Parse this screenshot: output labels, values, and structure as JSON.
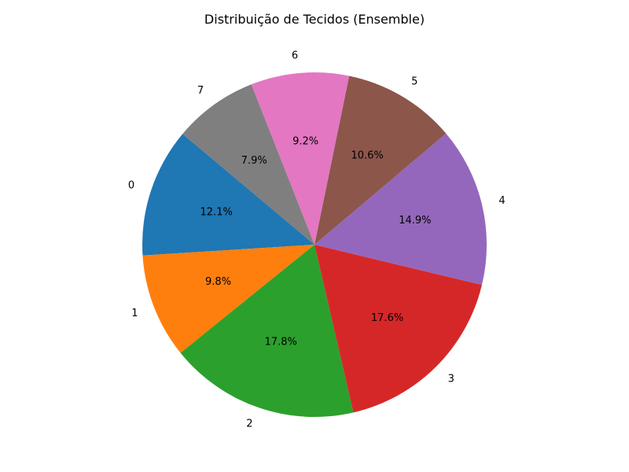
{
  "chart_data": {
    "type": "pie",
    "title": "Distribuição de Tecidos (Ensemble)",
    "start_angle_deg": 140,
    "direction": "counterclockwise",
    "slices": [
      {
        "label": "0",
        "value": 12.1,
        "pct_label": "12.1%",
        "color": "#1f77b4"
      },
      {
        "label": "1",
        "value": 9.8,
        "pct_label": "9.8%",
        "color": "#ff7f0e"
      },
      {
        "label": "2",
        "value": 17.8,
        "pct_label": "17.8%",
        "color": "#2ca02c"
      },
      {
        "label": "3",
        "value": 17.6,
        "pct_label": "17.6%",
        "color": "#d62728"
      },
      {
        "label": "4",
        "value": 14.9,
        "pct_label": "14.9%",
        "color": "#9467bd"
      },
      {
        "label": "5",
        "value": 10.6,
        "pct_label": "10.6%",
        "color": "#8c564b"
      },
      {
        "label": "6",
        "value": 9.2,
        "pct_label": "9.2%",
        "color": "#e377c2"
      },
      {
        "label": "7",
        "value": 7.9,
        "pct_label": "7.9%",
        "color": "#7f7f7f"
      }
    ]
  }
}
